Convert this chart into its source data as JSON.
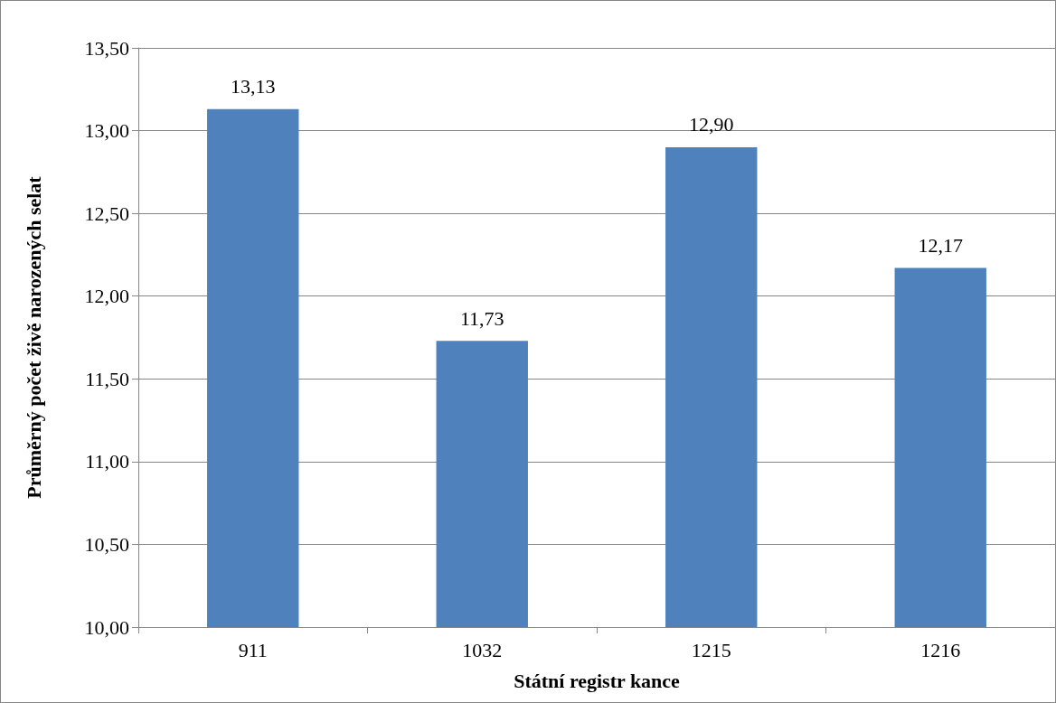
{
  "chart_data": {
    "type": "bar",
    "xlabel": "Státní registr kance",
    "ylabel": "Průměrný počet živě narozených selat",
    "categories": [
      "911",
      "1032",
      "1215",
      "1216"
    ],
    "values": [
      13.13,
      11.73,
      12.9,
      12.17
    ],
    "value_labels": [
      "13,13",
      "11,73",
      "12,90",
      "12,17"
    ],
    "color": "#4f81bd",
    "ylim": [
      10,
      13.5
    ],
    "yticks": [
      {
        "value": 10,
        "label": "10,00"
      },
      {
        "value": 10.5,
        "label": "10,50"
      },
      {
        "value": 11,
        "label": "11,00"
      },
      {
        "value": 11.5,
        "label": "11,50"
      },
      {
        "value": 12,
        "label": "12,00"
      },
      {
        "value": 12.5,
        "label": "12,50"
      },
      {
        "value": 13,
        "label": "13,00"
      },
      {
        "value": 13.5,
        "label": "13,50"
      }
    ],
    "grid": "y"
  }
}
